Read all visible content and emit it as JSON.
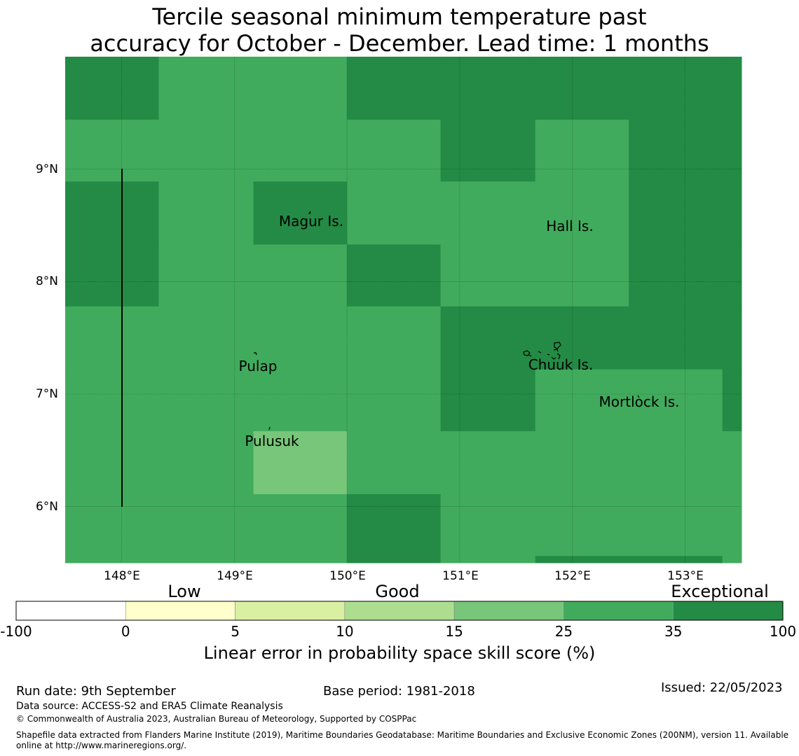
{
  "title": {
    "line1": "Tercile seasonal minimum temperature past",
    "line2": "accuracy for October - December. Lead time: 1 months"
  },
  "map": {
    "lon_range": [
      147.5,
      153.5
    ],
    "lat_range": [
      5.5,
      10.0
    ],
    "cell_lon": 0.833,
    "cell_lat": 0.556,
    "lon_ticks": [
      "148°E",
      "149°E",
      "150°E",
      "151°E",
      "152°E",
      "153°E"
    ],
    "lat_ticks": [
      "9°N",
      "8°N",
      "7°N",
      "6°N"
    ],
    "gridlines": true,
    "colors": {
      "exceptional": "#238b45",
      "good_high": "#41ab5d",
      "good_mid": "#78c679"
    },
    "skill_class_grid": [
      [
        "E",
        "G",
        "G",
        "E",
        "E",
        "E",
        "E",
        "E"
      ],
      [
        "G",
        "G",
        "G",
        "G",
        "E",
        "G",
        "E",
        "E"
      ],
      [
        "E",
        "G",
        "E",
        "G",
        "G",
        "G",
        "E",
        "E"
      ],
      [
        "E",
        "G",
        "G",
        "E",
        "G",
        "G",
        "E",
        "E"
      ],
      [
        "G",
        "G",
        "G",
        "G",
        "E",
        "E",
        "E",
        "E"
      ],
      [
        "G",
        "G",
        "G",
        "G",
        "E",
        "G",
        "G",
        "E"
      ],
      [
        "G",
        "G",
        "M",
        "G",
        "G",
        "G",
        "G",
        "G"
      ],
      [
        "G",
        "G",
        "G",
        "E",
        "G",
        "G",
        "G",
        "G"
      ],
      [
        "G",
        "G",
        "G",
        "E",
        "G",
        "E",
        "E",
        "G"
      ]
    ],
    "places": [
      {
        "name": "Magur Is.",
        "lon": 149.7,
        "lat": 8.55
      },
      {
        "name": "Hall Is.",
        "lon": 151.85,
        "lat": 8.5
      },
      {
        "name": "Pulap",
        "lon": 149.2,
        "lat": 7.25
      },
      {
        "name": "Chuuk Is.",
        "lon": 151.85,
        "lat": 7.25
      },
      {
        "name": "Mortlock Is.",
        "lon": 152.6,
        "lat": 6.9
      },
      {
        "name": "Pulusuk",
        "lon": 149.3,
        "lat": 6.6
      }
    ]
  },
  "colorbar": {
    "categories": [
      "Low",
      "Good",
      "Exceptional"
    ],
    "bins": [
      {
        "from": "-100",
        "to": "0",
        "color": "#ffffff"
      },
      {
        "from": "0",
        "to": "5",
        "color": "#ffffcc"
      },
      {
        "from": "5",
        "to": "10",
        "color": "#d9f0a3"
      },
      {
        "from": "10",
        "to": "15",
        "color": "#addd8e"
      },
      {
        "from": "15",
        "to": "25",
        "color": "#78c679"
      },
      {
        "from": "25",
        "to": "35",
        "color": "#41ab5d"
      },
      {
        "from": "35",
        "to": "100",
        "color": "#238b45"
      }
    ],
    "tick_labels": [
      "-100",
      "0",
      "5",
      "10",
      "15",
      "25",
      "35",
      "100"
    ],
    "label": "Linear error in probability space skill score (%)"
  },
  "footer": {
    "run_date": "Run date: 9th September",
    "base_period": "Base period: 1981-2018",
    "issued": "Issued: 22/05/2023",
    "data_source": "Data source: ACCESS-S2 and ERA5 Climate Reanalysis",
    "copyright": "© Commonwealth of Australia 2023, Australian Bureau of Meteorology, Supported by COSPPac",
    "shapefile_line1": "Shapefile data extracted from Flanders Marine Institute (2019), Maritime Boundaries Geodatabase: Maritime Boundaries and Exclusive Economic Zones (200NM), version 11. Available",
    "shapefile_line2": "online at http://www.marineregions.org/."
  }
}
